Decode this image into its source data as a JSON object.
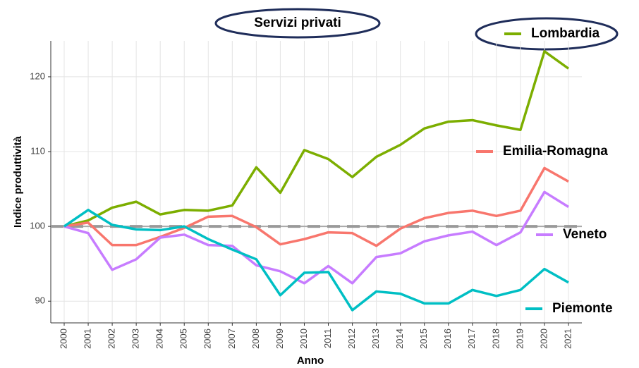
{
  "chart_data": {
    "type": "line",
    "title": "Servizi privati",
    "x_label": "Anno",
    "y_label": "Indice produttività",
    "categories": [
      "2000",
      "2001",
      "2002",
      "2003",
      "2004",
      "2005",
      "2006",
      "2007",
      "2008",
      "2009",
      "2010",
      "2011",
      "2012",
      "2013",
      "2014",
      "2015",
      "2016",
      "2017",
      "2018",
      "2019",
      "2020",
      "2021"
    ],
    "series": [
      {
        "name": "Lombardia",
        "color": "#7cae00",
        "values": [
          100,
          100.8,
          102.5,
          103.3,
          101.6,
          102.2,
          102.1,
          102.8,
          107.9,
          104.5,
          110.2,
          109.0,
          106.6,
          109.3,
          110.9,
          113.1,
          114.0,
          114.2,
          113.5,
          112.9,
          123.4,
          121.1
        ]
      },
      {
        "name": "Emilia-Romagna",
        "color": "#f8766d",
        "values": [
          100,
          100.5,
          97.5,
          97.5,
          98.6,
          99.8,
          101.3,
          101.4,
          99.9,
          97.6,
          98.3,
          99.2,
          99.1,
          97.4,
          99.7,
          101.1,
          101.8,
          102.1,
          101.4,
          102.1,
          107.8,
          106.0
        ]
      },
      {
        "name": "Veneto",
        "color": "#c77cff",
        "values": [
          100,
          99.1,
          94.2,
          95.6,
          98.5,
          98.9,
          97.5,
          97.4,
          94.8,
          94.0,
          92.4,
          94.7,
          92.4,
          95.9,
          96.4,
          98.0,
          98.8,
          99.3,
          97.5,
          99.2,
          104.6,
          102.6
        ]
      },
      {
        "name": "Piemonte",
        "color": "#00bfc4",
        "values": [
          100,
          102.2,
          100.2,
          99.6,
          99.5,
          100.0,
          98.3,
          96.9,
          95.6,
          90.8,
          93.8,
          93.9,
          88.8,
          91.3,
          91.0,
          89.7,
          89.7,
          91.5,
          90.7,
          91.5,
          94.3,
          92.5
        ]
      }
    ],
    "reference_line": 100,
    "ylim": [
      87.1,
      124.8
    ],
    "yticks": [
      90,
      100,
      110,
      120
    ],
    "grid": true
  }
}
